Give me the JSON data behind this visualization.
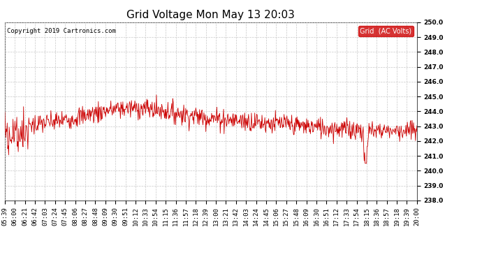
{
  "title": "Grid Voltage Mon May 13 20:03",
  "copyright": "Copyright 2019 Cartronics.com",
  "legend_label": "Grid  (AC Volts)",
  "legend_bg": "#cc0000",
  "legend_fg": "#ffffff",
  "line_color": "#cc0000",
  "background_color": "#ffffff",
  "grid_color": "#c8c8c8",
  "ylim": [
    238.0,
    250.0
  ],
  "ytick_min": 238.0,
  "ytick_max": 250.0,
  "ytick_step": 1.0,
  "x_labels": [
    "05:39",
    "06:00",
    "06:21",
    "06:42",
    "07:03",
    "07:24",
    "07:45",
    "08:06",
    "08:27",
    "08:48",
    "09:09",
    "09:30",
    "09:51",
    "10:12",
    "10:33",
    "10:54",
    "11:15",
    "11:36",
    "11:57",
    "12:18",
    "12:39",
    "13:00",
    "13:21",
    "13:42",
    "14:03",
    "14:24",
    "14:45",
    "15:06",
    "15:27",
    "15:48",
    "16:09",
    "16:30",
    "16:51",
    "17:12",
    "17:33",
    "17:54",
    "18:15",
    "18:36",
    "18:57",
    "19:18",
    "19:39",
    "20:00"
  ],
  "title_fontsize": 11,
  "tick_fontsize": 6.5,
  "copyright_fontsize": 6.5,
  "legend_fontsize": 7.0
}
